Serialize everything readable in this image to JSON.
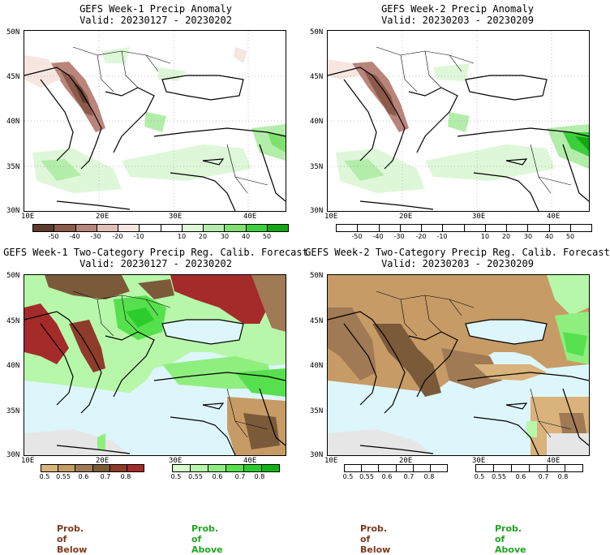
{
  "panels": [
    {
      "title1": "GEFS Week-1 Precip Anomaly",
      "title2": "Valid: 20230127 - 20230202"
    },
    {
      "title1": "GEFS Week-2 Precip Anomaly",
      "title2": "Valid: 20230203 - 20230209"
    },
    {
      "title1": "GEFS Week-1 Two-Category Precip Reg. Calib. Forecast",
      "title2": "Valid: 20230127 - 20230202"
    },
    {
      "title1": "GEFS Week-2 Two-Category Precip Reg. Calib. Forecast",
      "title2": "Valid: 20230203 - 20230209"
    }
  ],
  "axes": {
    "lat_labels": [
      "50N",
      "45N",
      "40N",
      "35N",
      "30N"
    ],
    "lon_labels": [
      "10E",
      "20E",
      "30E",
      "40E"
    ]
  },
  "anomaly_colorbar": {
    "colors": [
      "#5e3a2c",
      "#8b5a4a",
      "#b9847a",
      "#e2bfb6",
      "#f6e6df",
      "#ffffff",
      "#ffffff",
      "#dff7d9",
      "#b3edaa",
      "#7fdf6f",
      "#3ccf3c",
      "#11a811"
    ],
    "ticks": [
      "-50",
      "-40",
      "-30",
      "-20",
      "-10",
      "10",
      "20",
      "30",
      "40",
      "50"
    ]
  },
  "below_colorbar": {
    "colors": [
      "#d9b27c",
      "#c69b66",
      "#a07955",
      "#7b5a3a",
      "#8e3b2a",
      "#a52a2a"
    ],
    "ticks": [
      "0.5",
      "0.55",
      "0.6",
      "0.7",
      "0.8"
    ]
  },
  "above_colorbar": {
    "colors": [
      "#d7ffcc",
      "#b7f7a9",
      "#8eef7e",
      "#57e04e",
      "#2ccc2c",
      "#10b510"
    ],
    "ticks": [
      "0.5",
      "0.55",
      "0.6",
      "0.7",
      "0.8"
    ]
  },
  "legend": {
    "below_label": "Prob. of Below",
    "above_label": "Prob. of Above",
    "below_color": "#7b3a1e",
    "above_color": "#1fa51f"
  }
}
